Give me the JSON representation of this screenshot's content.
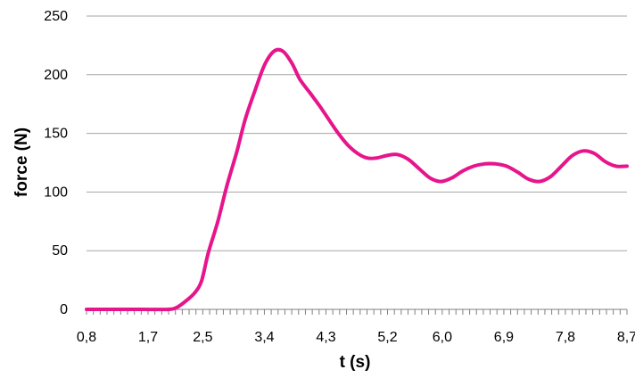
{
  "chart_data": {
    "type": "line",
    "title": "",
    "xlabel": "t (s)",
    "ylabel": "force (N)",
    "xlim": [
      0.8,
      8.7
    ],
    "ylim": [
      0,
      250
    ],
    "yticks": [
      0,
      50,
      100,
      150,
      200,
      250
    ],
    "ytick_labels": [
      "0",
      "50",
      "100",
      "150",
      "200",
      "250"
    ],
    "xticks": [
      0.8,
      1.7,
      2.5,
      3.4,
      4.3,
      5.2,
      6.0,
      6.9,
      7.8,
      8.7
    ],
    "xtick_labels": [
      "0,8",
      "1,7",
      "2,5",
      "3,4",
      "4,3",
      "5,2",
      "6,0",
      "6,9",
      "7,8",
      "8,7"
    ],
    "grid": "horizontal",
    "legend": "none",
    "series": [
      {
        "color": "#e6158c",
        "x": [
          0.8,
          1.2,
          1.6,
          2.0,
          2.13,
          2.25,
          2.38,
          2.48,
          2.58,
          2.72,
          2.85,
          3.0,
          3.12,
          3.26,
          3.4,
          3.54,
          3.67,
          3.8,
          3.92,
          4.06,
          4.2,
          4.34,
          4.48,
          4.62,
          4.76,
          4.9,
          5.04,
          5.18,
          5.34,
          5.5,
          5.66,
          5.82,
          5.98,
          6.14,
          6.3,
          6.46,
          6.62,
          6.78,
          6.94,
          7.1,
          7.26,
          7.42,
          7.58,
          7.74,
          7.9,
          8.06,
          8.22,
          8.38,
          8.54,
          8.7
        ],
        "y": [
          0,
          0,
          0,
          0,
          2,
          7,
          14,
          24,
          48,
          75,
          105,
          135,
          162,
          186,
          208,
          220,
          220,
          210,
          196,
          185,
          174,
          162,
          150,
          140,
          133,
          129,
          129,
          131,
          132,
          128,
          120,
          112,
          109,
          112,
          118,
          122,
          124,
          124,
          122,
          117,
          111,
          109,
          113,
          122,
          131,
          135,
          133,
          126,
          122,
          122
        ]
      }
    ]
  }
}
